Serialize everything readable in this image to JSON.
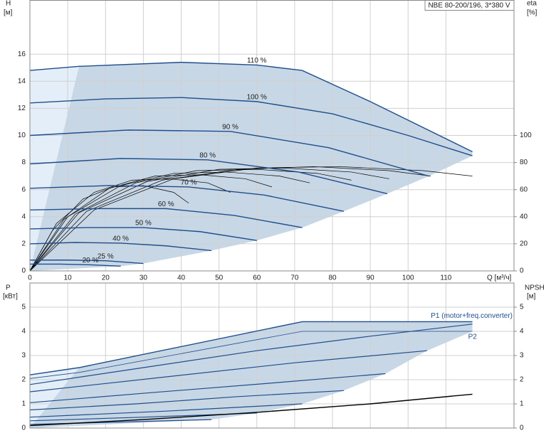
{
  "chart_data": [
    {
      "type": "line",
      "title": "NBE 80-200/196, 3*380 V",
      "ylabel": "H",
      "yunit": "[м]",
      "y2label": "eta",
      "y2unit": "[%]",
      "xlabel": "Q [м³/ч]",
      "xlim": [
        0,
        128
      ],
      "xticks": [
        0,
        10,
        20,
        30,
        40,
        50,
        60,
        70,
        80,
        90,
        100,
        110
      ],
      "ylim": [
        0,
        20
      ],
      "yticks": [
        0,
        2,
        4,
        6,
        8,
        10,
        12,
        14,
        16
      ],
      "y2lim": [
        0,
        200
      ],
      "y2ticks": [
        0,
        20,
        40,
        60,
        80,
        100
      ],
      "grid": true,
      "series": [
        {
          "name": "110 %",
          "color": "#1f4e8c",
          "x": [
            0,
            13,
            40,
            60,
            72,
            90,
            117
          ],
          "values": [
            14.8,
            15.1,
            15.4,
            15.2,
            14.8,
            12.5,
            8.8
          ]
        },
        {
          "name": "100 %",
          "color": "#1f4e8c",
          "x": [
            0,
            20,
            40,
            60,
            80,
            100,
            117
          ],
          "values": [
            12.4,
            12.7,
            12.8,
            12.5,
            11.6,
            10.0,
            8.5
          ]
        },
        {
          "name": "90 %",
          "color": "#1f4e8c",
          "x": [
            0,
            26,
            53,
            79,
            105.5
          ],
          "values": [
            10.0,
            10.4,
            10.3,
            9.1,
            7.0
          ]
        },
        {
          "name": "80 %",
          "color": "#1f4e8c",
          "x": [
            0,
            24,
            47,
            71,
            94.5
          ],
          "values": [
            7.9,
            8.3,
            8.2,
            7.3,
            5.7
          ]
        },
        {
          "name": "70 %",
          "color": "#1f4e8c",
          "x": [
            0,
            21,
            42,
            62,
            83
          ],
          "values": [
            6.1,
            6.3,
            6.2,
            5.6,
            4.4
          ]
        },
        {
          "name": "60 %",
          "color": "#1f4e8c",
          "x": [
            0,
            18,
            36,
            54,
            72
          ],
          "values": [
            4.5,
            4.6,
            4.6,
            4.1,
            3.2
          ]
        },
        {
          "name": "50 %",
          "color": "#1f4e8c",
          "x": [
            0,
            15,
            30,
            45,
            60
          ],
          "values": [
            3.1,
            3.2,
            3.2,
            2.9,
            2.25
          ]
        },
        {
          "name": "40 %",
          "color": "#1f4e8c",
          "x": [
            0,
            12,
            24,
            36,
            48
          ],
          "values": [
            2.0,
            2.1,
            2.05,
            1.85,
            1.5
          ]
        },
        {
          "name": "25 %",
          "color": "#1f4e8c",
          "x": [
            0,
            10,
            20,
            30
          ],
          "values": [
            0.8,
            0.8,
            0.75,
            0.55
          ]
        },
        {
          "name": "20 %",
          "color": "#1f4e8c",
          "x": [
            0,
            8,
            16,
            24
          ],
          "values": [
            0.5,
            0.5,
            0.45,
            0.35
          ]
        }
      ],
      "eta_series": [
        {
          "color": "#000000",
          "axis": "y2",
          "x": [
            0,
            17,
            38,
            60,
            82,
            104,
            117
          ],
          "values": [
            0,
            45,
            68,
            76,
            77,
            74,
            70
          ]
        },
        {
          "color": "#000000",
          "axis": "y2",
          "x": [
            0,
            15,
            35,
            55,
            75,
            95,
            106
          ],
          "values": [
            0,
            44,
            67,
            75,
            77,
            74,
            70
          ]
        },
        {
          "color": "#000000",
          "axis": "y2",
          "x": [
            0,
            13,
            31,
            50,
            67,
            85,
            95
          ],
          "values": [
            0,
            43,
            66,
            75,
            76,
            73,
            68
          ]
        },
        {
          "color": "#000000",
          "axis": "y2",
          "x": [
            0,
            12,
            28,
            44,
            60,
            76,
            85
          ],
          "values": [
            0,
            42,
            65,
            74,
            75,
            72,
            67
          ]
        },
        {
          "color": "#000000",
          "axis": "y2",
          "x": [
            0,
            10,
            24,
            38,
            52,
            66,
            74
          ],
          "values": [
            0,
            40,
            63,
            72,
            73,
            70,
            65
          ]
        },
        {
          "color": "#000000",
          "axis": "y2",
          "x": [
            0,
            9,
            21,
            33,
            45,
            57,
            64
          ],
          "values": [
            0,
            38,
            61,
            70,
            71,
            68,
            62
          ]
        },
        {
          "color": "#000000",
          "axis": "y2",
          "x": [
            0,
            7,
            17,
            27,
            37,
            47,
            53
          ],
          "values": [
            0,
            35,
            58,
            67,
            68,
            65,
            58
          ]
        },
        {
          "color": "#000000",
          "axis": "y2",
          "x": [
            0,
            6,
            14,
            22,
            30,
            38,
            42
          ],
          "values": [
            0,
            30,
            53,
            62,
            63,
            58,
            50
          ]
        }
      ]
    },
    {
      "type": "line",
      "ylabel": "P",
      "yunit": "[кВт]",
      "y2label": "NPSH",
      "y2unit": "[м]",
      "xlim": [
        0,
        128
      ],
      "ylim": [
        0,
        6
      ],
      "yticks": [
        0,
        1,
        2,
        3,
        4,
        5
      ],
      "y2lim": [
        0,
        6
      ],
      "y2ticks": [
        0,
        1,
        2,
        3,
        4,
        5
      ],
      "grid": true,
      "series": [
        {
          "name": "P1 (motor+freq.converter)",
          "color": "#1f4e8c",
          "x": [
            0,
            13,
            72,
            117
          ],
          "values": [
            2.2,
            2.5,
            4.4,
            4.4
          ]
        },
        {
          "name": "P2",
          "color": "#1f4e8c",
          "x": [
            0,
            13,
            72,
            117
          ],
          "values": [
            2.05,
            2.3,
            4.0,
            4.0
          ]
        }
      ],
      "power_curves": [
        {
          "color": "#1f4e8c",
          "x": [
            0,
            30,
            60,
            90,
            117
          ],
          "values": [
            1.8,
            2.5,
            3.2,
            3.8,
            4.3
          ]
        },
        {
          "color": "#1f4e8c",
          "x": [
            0,
            35,
            70,
            105
          ],
          "values": [
            1.5,
            2.1,
            2.7,
            3.2
          ]
        },
        {
          "color": "#1f4e8c",
          "x": [
            0,
            31,
            63,
            94
          ],
          "values": [
            1.05,
            1.45,
            1.85,
            2.25
          ]
        },
        {
          "color": "#1f4e8c",
          "x": [
            0,
            28,
            55,
            83
          ],
          "values": [
            0.75,
            1.0,
            1.3,
            1.55
          ]
        },
        {
          "color": "#1f4e8c",
          "x": [
            0,
            36,
            72
          ],
          "values": [
            0.45,
            0.7,
            1.0
          ]
        },
        {
          "color": "#1f4e8c",
          "x": [
            0,
            30,
            60
          ],
          "values": [
            0.3,
            0.45,
            0.62
          ]
        },
        {
          "color": "#1f4e8c",
          "x": [
            0,
            24,
            48
          ],
          "values": [
            0.15,
            0.25,
            0.35
          ]
        }
      ],
      "npsh": {
        "color": "#000000",
        "axis": "y2",
        "x": [
          0,
          30,
          60,
          90,
          117
        ],
        "values": [
          0.1,
          0.35,
          0.65,
          1.0,
          1.4
        ]
      }
    }
  ]
}
